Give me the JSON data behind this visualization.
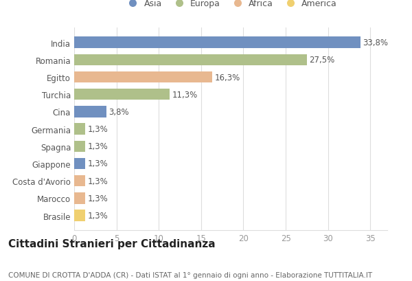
{
  "categories": [
    "India",
    "Romania",
    "Egitto",
    "Turchia",
    "Cina",
    "Germania",
    "Spagna",
    "Giappone",
    "Costa d'Avorio",
    "Marocco",
    "Brasile"
  ],
  "values": [
    33.8,
    27.5,
    16.3,
    11.3,
    3.8,
    1.3,
    1.3,
    1.3,
    1.3,
    1.3,
    1.3
  ],
  "continents": [
    "Asia",
    "Europa",
    "Africa",
    "Europa",
    "Asia",
    "Europa",
    "Europa",
    "Asia",
    "Africa",
    "Africa",
    "America"
  ],
  "colors": {
    "Asia": "#7090c0",
    "Europa": "#afc08a",
    "Africa": "#e8b890",
    "America": "#f0d070"
  },
  "legend_order": [
    "Asia",
    "Europa",
    "Africa",
    "America"
  ],
  "title": "Cittadini Stranieri per Cittadinanza",
  "subtitle": "COMUNE DI CROTTA D'ADDA (CR) - Dati ISTAT al 1° gennaio di ogni anno - Elaborazione TUTTITALIA.IT",
  "xlim": [
    0,
    37
  ],
  "xticks": [
    0,
    5,
    10,
    15,
    20,
    25,
    30,
    35
  ],
  "background_color": "#ffffff",
  "grid_color": "#dddddd",
  "title_fontsize": 11,
  "subtitle_fontsize": 7.5,
  "bar_height": 0.65,
  "label_fontsize": 8.5,
  "tick_fontsize": 8.5,
  "legend_fontsize": 9
}
